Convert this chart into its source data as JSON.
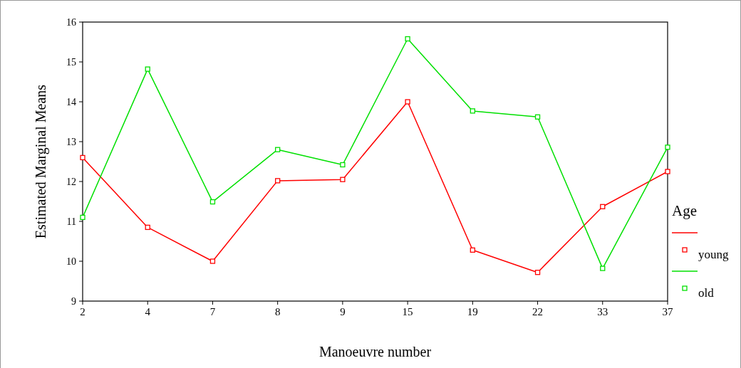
{
  "chart_data": {
    "type": "line",
    "xlabel": "Manoeuvre number",
    "ylabel": "Estimated Marginal Means",
    "legend_title": "Age",
    "categories": [
      "2",
      "4",
      "7",
      "8",
      "9",
      "15",
      "19",
      "22",
      "33",
      "37"
    ],
    "series": [
      {
        "name": "young",
        "color": "#ff0000",
        "values": [
          12.6,
          10.85,
          10.0,
          12.02,
          12.05,
          14.0,
          10.28,
          9.72,
          11.37,
          12.25
        ]
      },
      {
        "name": "old",
        "color": "#00e000",
        "values": [
          11.1,
          14.82,
          11.49,
          12.8,
          12.42,
          15.58,
          13.77,
          13.62,
          9.82,
          12.86
        ]
      }
    ],
    "ylim": [
      9,
      16
    ],
    "yticks": [
      9,
      10,
      11,
      12,
      13,
      14,
      15,
      16
    ],
    "legend": "right",
    "marker": "square",
    "line_style": "solid",
    "grid": false
  }
}
